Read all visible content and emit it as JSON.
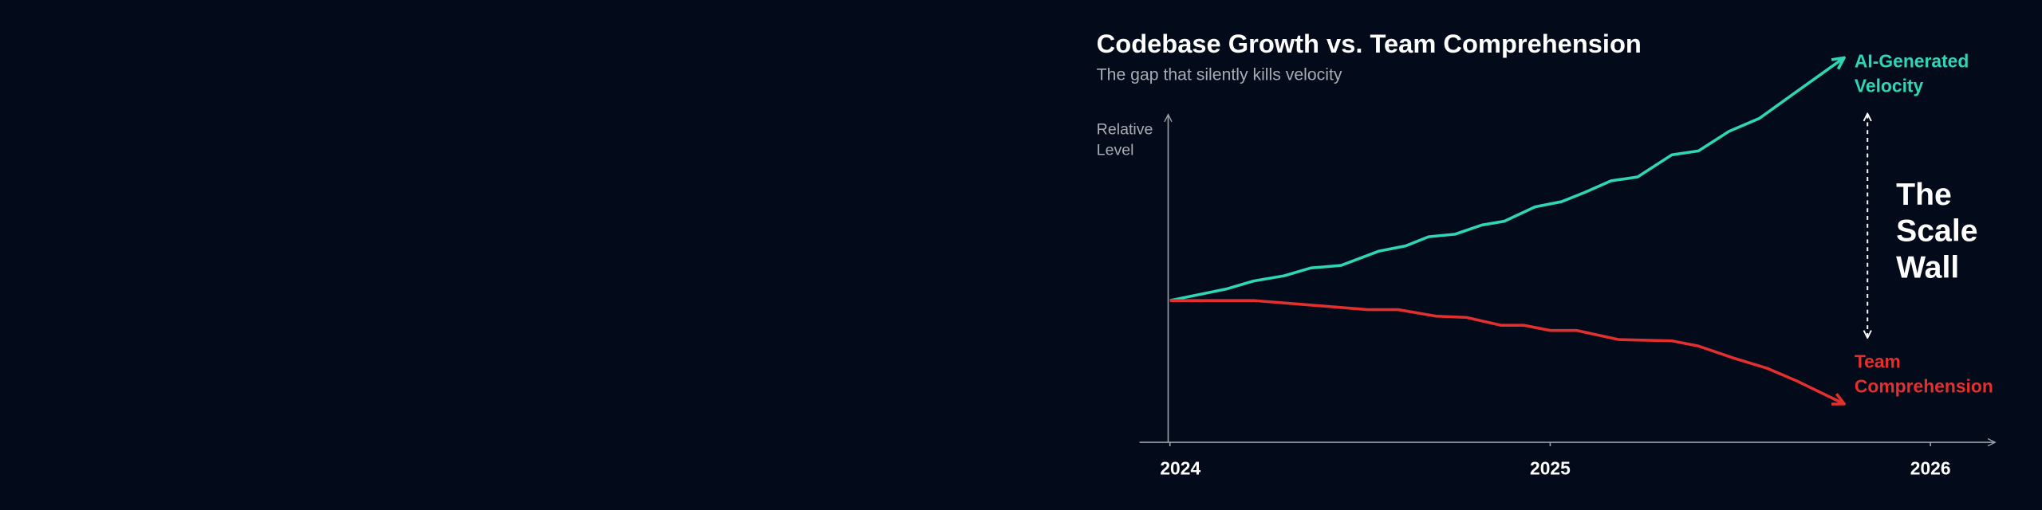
{
  "chart_data": {
    "type": "line",
    "title": "Codebase Growth vs. Team Comprehension",
    "subtitle": "The gap that silently kills velocity",
    "y_label": [
      "Relative",
      "Level"
    ],
    "xlim": [
      2023.92,
      2026.17
    ],
    "xticks": [
      2024,
      2025,
      2026
    ],
    "ylim": [
      0,
      120
    ],
    "grid": false,
    "series": [
      {
        "name": [
          "AI-Generated",
          "Velocity"
        ],
        "color": "#2fd6b6",
        "x": [
          2024.0,
          2024.15,
          2024.22,
          2024.3,
          2024.37,
          2024.45,
          2024.55,
          2024.62,
          2024.68,
          2024.75,
          2024.82,
          2024.88,
          2024.96,
          2025.03,
          2025.09,
          2025.16,
          2025.23,
          2025.32,
          2025.39,
          2025.47,
          2025.55,
          2025.65,
          2025.77
        ],
        "values": [
          43.6,
          47.2,
          49.6,
          51.2,
          53.6,
          54.4,
          58.8,
          60.4,
          63.2,
          64,
          66.8,
          68,
          72.4,
          74,
          76.8,
          80.4,
          81.6,
          88.4,
          89.6,
          95.6,
          99.6,
          108,
          118
        ]
      },
      {
        "name": [
          "Team",
          "Comprehension"
        ],
        "color": "#e3302e",
        "x": [
          2024.0,
          2024.22,
          2024.35,
          2024.52,
          2024.6,
          2024.7,
          2024.78,
          2024.87,
          2024.93,
          2025.0,
          2025.07,
          2025.18,
          2025.32,
          2025.39,
          2025.48,
          2025.57,
          2025.65,
          2025.77
        ],
        "values": [
          43.6,
          43.6,
          42.4,
          40.8,
          40.8,
          38.8,
          38.4,
          36,
          36,
          34.4,
          34.4,
          31.6,
          31.2,
          29.6,
          26,
          22.8,
          18.8,
          12
        ]
      }
    ],
    "annotation": [
      "The",
      "Scale",
      "Wall"
    ]
  }
}
